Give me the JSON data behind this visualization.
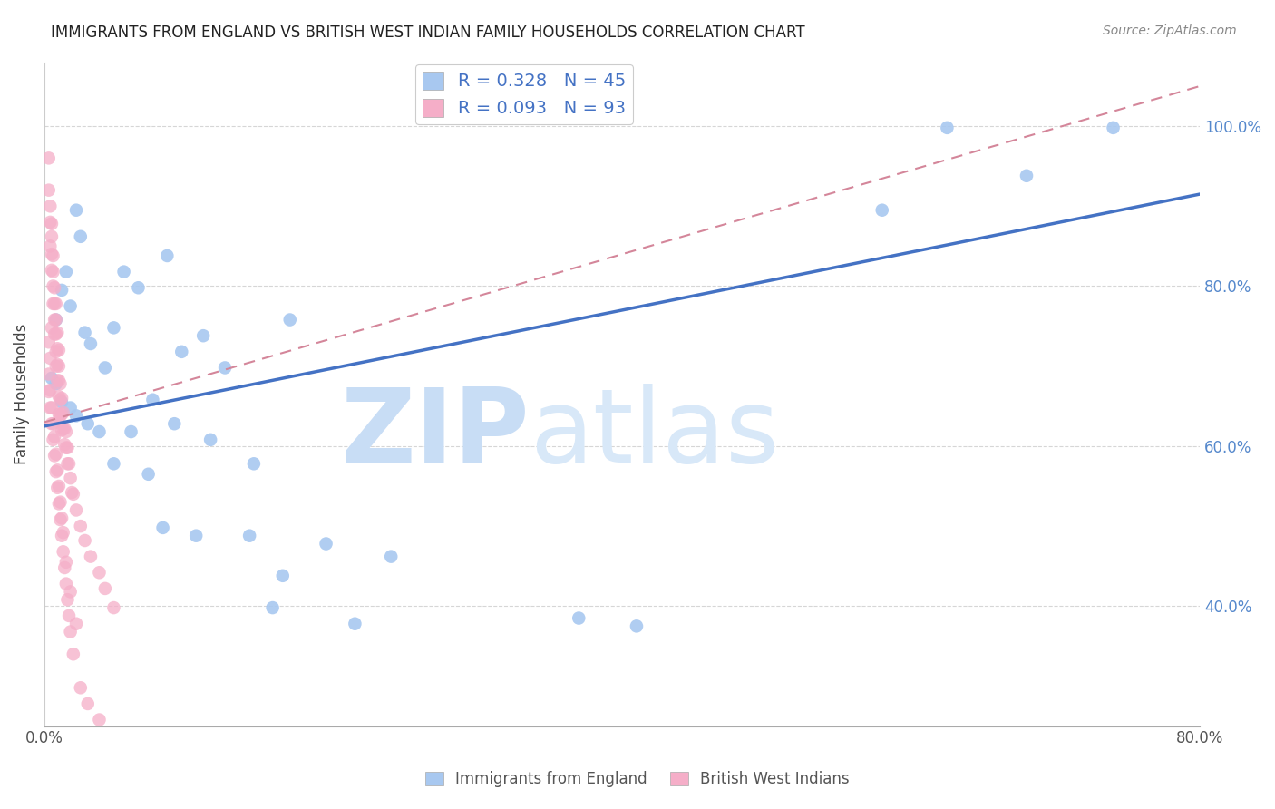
{
  "title": "IMMIGRANTS FROM ENGLAND VS BRITISH WEST INDIAN FAMILY HOUSEHOLDS CORRELATION CHART",
  "source": "Source: ZipAtlas.com",
  "ylabel": "Family Households",
  "xlim": [
    0.0,
    0.8
  ],
  "ylim": [
    0.25,
    1.08
  ],
  "xtick_positions": [
    0.0,
    0.1,
    0.2,
    0.3,
    0.4,
    0.5,
    0.6,
    0.7,
    0.8
  ],
  "xticklabels": [
    "0.0%",
    "",
    "",
    "",
    "",
    "",
    "",
    "",
    "80.0%"
  ],
  "ytick_positions": [
    0.4,
    0.6,
    0.8,
    1.0
  ],
  "yticklabels_right": [
    "40.0%",
    "60.0%",
    "80.0%",
    "100.0%"
  ],
  "legend_label1": "Immigrants from England",
  "legend_label2": "British West Indians",
  "R1": 0.328,
  "N1": 45,
  "R2": 0.093,
  "N2": 93,
  "color_blue": "#a8c8f0",
  "color_pink": "#f5aec8",
  "trendline_blue_color": "#4472c4",
  "trendline_pink_color": "#d4869a",
  "watermark_zip": "ZIP",
  "watermark_atlas": "atlas",
  "watermark_color": "#ddeeff",
  "blue_trendline_x0": 0.0,
  "blue_trendline_y0": 0.625,
  "blue_trendline_x1": 0.8,
  "blue_trendline_y1": 0.915,
  "pink_trendline_x0": 0.0,
  "pink_trendline_y0": 0.63,
  "pink_trendline_x1": 0.8,
  "pink_trendline_y1": 1.05,
  "blue_points_x": [
    0.005,
    0.022,
    0.025,
    0.015,
    0.012,
    0.018,
    0.008,
    0.028,
    0.032,
    0.042,
    0.055,
    0.048,
    0.065,
    0.085,
    0.095,
    0.11,
    0.125,
    0.075,
    0.09,
    0.17,
    0.008,
    0.012,
    0.018,
    0.022,
    0.03,
    0.038,
    0.048,
    0.06,
    0.115,
    0.145,
    0.195,
    0.215,
    0.165,
    0.105,
    0.082,
    0.142,
    0.24,
    0.072,
    0.158,
    0.58,
    0.68,
    0.74,
    0.625,
    0.37,
    0.41
  ],
  "blue_points_y": [
    0.685,
    0.895,
    0.862,
    0.818,
    0.795,
    0.775,
    0.758,
    0.742,
    0.728,
    0.698,
    0.818,
    0.748,
    0.798,
    0.838,
    0.718,
    0.738,
    0.698,
    0.658,
    0.628,
    0.758,
    0.678,
    0.655,
    0.648,
    0.638,
    0.628,
    0.618,
    0.578,
    0.618,
    0.608,
    0.578,
    0.478,
    0.378,
    0.438,
    0.488,
    0.498,
    0.488,
    0.462,
    0.565,
    0.398,
    0.895,
    0.938,
    0.998,
    0.998,
    0.385,
    0.375
  ],
  "pink_points_x": [
    0.003,
    0.003,
    0.004,
    0.004,
    0.004,
    0.005,
    0.005,
    0.005,
    0.005,
    0.006,
    0.006,
    0.006,
    0.006,
    0.007,
    0.007,
    0.007,
    0.007,
    0.008,
    0.008,
    0.008,
    0.008,
    0.008,
    0.009,
    0.009,
    0.009,
    0.009,
    0.01,
    0.01,
    0.01,
    0.01,
    0.01,
    0.011,
    0.011,
    0.011,
    0.012,
    0.012,
    0.012,
    0.013,
    0.013,
    0.014,
    0.014,
    0.015,
    0.015,
    0.016,
    0.016,
    0.017,
    0.018,
    0.019,
    0.02,
    0.022,
    0.025,
    0.028,
    0.032,
    0.038,
    0.042,
    0.048,
    0.003,
    0.004,
    0.005,
    0.006,
    0.007,
    0.008,
    0.009,
    0.01,
    0.011,
    0.012,
    0.013,
    0.015,
    0.018,
    0.022,
    0.003,
    0.004,
    0.005,
    0.006,
    0.007,
    0.008,
    0.009,
    0.01,
    0.011,
    0.012,
    0.013,
    0.014,
    0.015,
    0.016,
    0.017,
    0.018,
    0.02,
    0.025,
    0.03,
    0.038,
    0.003,
    0.004,
    0.005
  ],
  "pink_points_y": [
    0.96,
    0.92,
    0.88,
    0.9,
    0.85,
    0.862,
    0.878,
    0.84,
    0.82,
    0.838,
    0.818,
    0.8,
    0.778,
    0.798,
    0.778,
    0.758,
    0.74,
    0.778,
    0.758,
    0.74,
    0.718,
    0.7,
    0.742,
    0.722,
    0.702,
    0.682,
    0.72,
    0.7,
    0.682,
    0.662,
    0.64,
    0.678,
    0.658,
    0.638,
    0.66,
    0.64,
    0.62,
    0.642,
    0.622,
    0.622,
    0.602,
    0.618,
    0.598,
    0.598,
    0.578,
    0.578,
    0.56,
    0.542,
    0.54,
    0.52,
    0.5,
    0.482,
    0.462,
    0.442,
    0.422,
    0.398,
    0.69,
    0.67,
    0.648,
    0.628,
    0.612,
    0.59,
    0.57,
    0.55,
    0.53,
    0.51,
    0.492,
    0.455,
    0.418,
    0.378,
    0.668,
    0.648,
    0.628,
    0.608,
    0.588,
    0.568,
    0.548,
    0.528,
    0.508,
    0.488,
    0.468,
    0.448,
    0.428,
    0.408,
    0.388,
    0.368,
    0.34,
    0.298,
    0.278,
    0.258,
    0.73,
    0.71,
    0.748
  ]
}
